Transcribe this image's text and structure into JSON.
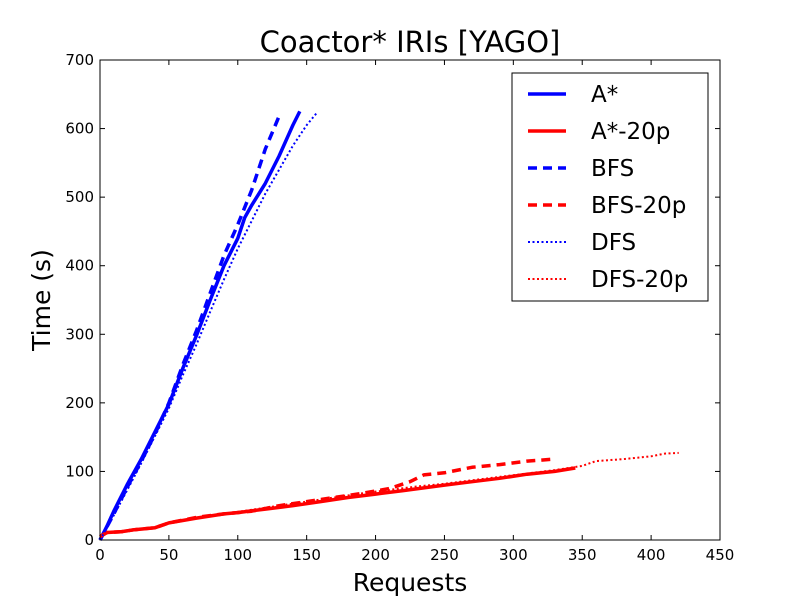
{
  "chart_data": {
    "type": "line",
    "title": "Coactor* IRIs [YAGO]",
    "xlabel": "Requests",
    "ylabel": "Time (s)",
    "xlim": [
      0,
      450
    ],
    "ylim": [
      0,
      700
    ],
    "xticks": [
      0,
      50,
      100,
      150,
      200,
      250,
      300,
      350,
      400,
      450
    ],
    "yticks": [
      0,
      100,
      200,
      300,
      400,
      500,
      600,
      700
    ],
    "grid": false,
    "legend_position": "top-right",
    "series": [
      {
        "name": "A*",
        "color": "#0000ff",
        "style": "solid",
        "points": [
          [
            0,
            0
          ],
          [
            5,
            20
          ],
          [
            10,
            42
          ],
          [
            20,
            82
          ],
          [
            30,
            118
          ],
          [
            40,
            158
          ],
          [
            50,
            198
          ],
          [
            60,
            250
          ],
          [
            70,
            298
          ],
          [
            80,
            350
          ],
          [
            90,
            400
          ],
          [
            100,
            440
          ],
          [
            105,
            470
          ],
          [
            110,
            488
          ],
          [
            120,
            520
          ],
          [
            130,
            560
          ],
          [
            140,
            605
          ],
          [
            145,
            625
          ]
        ]
      },
      {
        "name": "A*-20p",
        "color": "#ff0000",
        "style": "solid",
        "points": [
          [
            0,
            5
          ],
          [
            5,
            11
          ],
          [
            15,
            12
          ],
          [
            25,
            15
          ],
          [
            40,
            18
          ],
          [
            50,
            25
          ],
          [
            70,
            32
          ],
          [
            90,
            38
          ],
          [
            100,
            40
          ],
          [
            120,
            45
          ],
          [
            140,
            50
          ],
          [
            160,
            56
          ],
          [
            180,
            62
          ],
          [
            200,
            67
          ],
          [
            220,
            72
          ],
          [
            235,
            76
          ],
          [
            250,
            80
          ],
          [
            270,
            85
          ],
          [
            290,
            90
          ],
          [
            310,
            96
          ],
          [
            330,
            100
          ],
          [
            345,
            105
          ]
        ]
      },
      {
        "name": "BFS",
        "color": "#0000ff",
        "style": "dashed",
        "points": [
          [
            0,
            0
          ],
          [
            10,
            38
          ],
          [
            20,
            78
          ],
          [
            30,
            115
          ],
          [
            40,
            155
          ],
          [
            50,
            200
          ],
          [
            60,
            255
          ],
          [
            70,
            305
          ],
          [
            80,
            360
          ],
          [
            90,
            415
          ],
          [
            100,
            460
          ],
          [
            110,
            510
          ],
          [
            120,
            570
          ],
          [
            130,
            618
          ]
        ]
      },
      {
        "name": "BFS-20p",
        "color": "#ff0000",
        "style": "dashed",
        "points": [
          [
            0,
            5
          ],
          [
            5,
            11
          ],
          [
            15,
            12
          ],
          [
            25,
            15
          ],
          [
            40,
            18
          ],
          [
            50,
            25
          ],
          [
            70,
            33
          ],
          [
            90,
            38
          ],
          [
            110,
            42
          ],
          [
            130,
            50
          ],
          [
            150,
            56
          ],
          [
            170,
            62
          ],
          [
            190,
            68
          ],
          [
            210,
            75
          ],
          [
            225,
            85
          ],
          [
            235,
            95
          ],
          [
            250,
            98
          ],
          [
            270,
            106
          ],
          [
            290,
            110
          ],
          [
            310,
            115
          ],
          [
            330,
            118
          ]
        ]
      },
      {
        "name": "DFS",
        "color": "#0000ff",
        "style": "dotted",
        "points": [
          [
            0,
            0
          ],
          [
            10,
            36
          ],
          [
            20,
            74
          ],
          [
            30,
            112
          ],
          [
            40,
            152
          ],
          [
            50,
            192
          ],
          [
            60,
            240
          ],
          [
            70,
            285
          ],
          [
            80,
            333
          ],
          [
            90,
            380
          ],
          [
            100,
            425
          ],
          [
            110,
            465
          ],
          [
            120,
            505
          ],
          [
            130,
            540
          ],
          [
            140,
            575
          ],
          [
            150,
            605
          ],
          [
            157,
            622
          ]
        ]
      },
      {
        "name": "DFS-20p",
        "color": "#ff0000",
        "style": "dotted",
        "points": [
          [
            0,
            5
          ],
          [
            5,
            11
          ],
          [
            15,
            12
          ],
          [
            25,
            15
          ],
          [
            40,
            18
          ],
          [
            50,
            25
          ],
          [
            70,
            32
          ],
          [
            90,
            38
          ],
          [
            110,
            44
          ],
          [
            130,
            50
          ],
          [
            150,
            56
          ],
          [
            170,
            62
          ],
          [
            190,
            68
          ],
          [
            210,
            73
          ],
          [
            230,
            78
          ],
          [
            250,
            82
          ],
          [
            270,
            87
          ],
          [
            290,
            92
          ],
          [
            310,
            97
          ],
          [
            330,
            102
          ],
          [
            350,
            108
          ],
          [
            360,
            115
          ],
          [
            380,
            118
          ],
          [
            400,
            122
          ],
          [
            410,
            126
          ],
          [
            420,
            127
          ]
        ]
      }
    ]
  }
}
